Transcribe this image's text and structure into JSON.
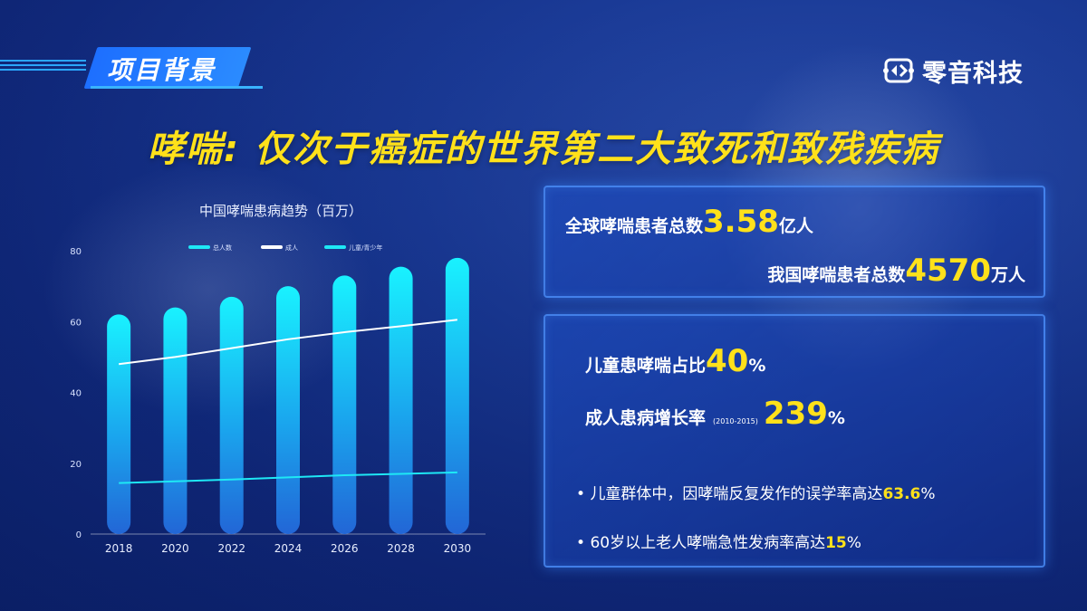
{
  "header": {
    "title": "项目背景",
    "logo_text": "零音科技"
  },
  "headline": "哮喘: 仅次于癌症的世界第二大致死和致残疾病",
  "stats": {
    "global_label": "全球哮喘患者总数",
    "global_value": "3.58",
    "global_unit": "亿人",
    "china_label": "我国哮喘患者总数",
    "china_value": "4570",
    "china_unit": "万人",
    "child_label": "儿童患哮喘占比",
    "child_value": "40",
    "child_unit": "%",
    "adult_label": "成人患病增长率",
    "adult_period": "(2010-2015)",
    "adult_value": "239",
    "adult_unit": "%"
  },
  "bullets": [
    {
      "text": "儿童群体中，因哮喘反复发作的误学率高达",
      "value": "63.6",
      "unit": "%"
    },
    {
      "text": "60岁以上老人哮喘急性发病率高达",
      "value": "15",
      "unit": "%"
    }
  ],
  "chart_data": {
    "type": "bar",
    "title": "中国哮喘患病趋势（百万）",
    "categories": [
      "2018",
      "2020",
      "2022",
      "2024",
      "2026",
      "2028",
      "2030"
    ],
    "ylim": [
      0,
      80
    ],
    "yticks": [
      "0",
      "20",
      "40",
      "60",
      "80"
    ],
    "grid": false,
    "legend_position": "top",
    "series": [
      {
        "name": "总人数",
        "kind": "bar",
        "color": "#1ee8f5",
        "values": [
          62,
          64,
          67,
          70,
          73,
          75.5,
          78
        ]
      },
      {
        "name": "成人",
        "kind": "line",
        "color": "#ffffff",
        "values": [
          48,
          50,
          52.5,
          55,
          57,
          58.7,
          60.5
        ]
      },
      {
        "name": "儿童/青少年",
        "kind": "line",
        "color": "#1ee8f5",
        "values": [
          14.4,
          14.9,
          15.4,
          16,
          16.6,
          17,
          17.4
        ]
      }
    ]
  }
}
